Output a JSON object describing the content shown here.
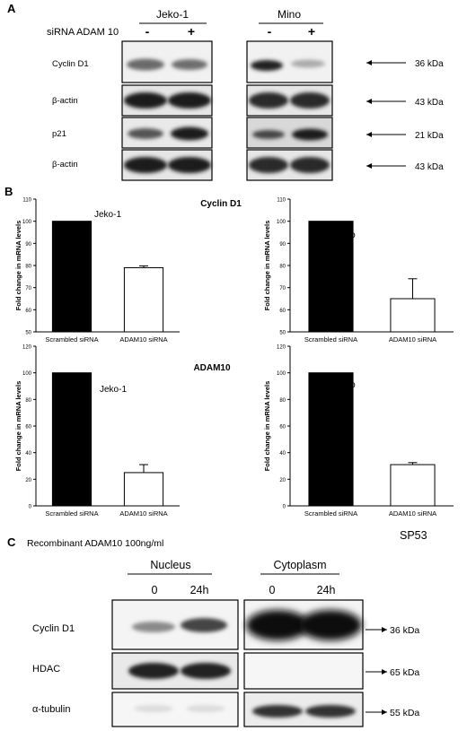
{
  "panel_a": {
    "letter": "A",
    "cell_lines": [
      "Jeko-1",
      "Mino"
    ],
    "treatment_label": "siRNA  ADAM 10",
    "lane_signs": [
      "-",
      "+"
    ],
    "rows": [
      {
        "label": "Cyclin D1",
        "size": "36 kDa"
      },
      {
        "label": "β-actin",
        "size": "43 kDa"
      },
      {
        "label": "p21",
        "size": "21 kDa"
      },
      {
        "label": "β-actin",
        "size": "43 kDa"
      }
    ]
  },
  "panel_b": {
    "letter": "B",
    "row_titles": [
      "Cyclin D1",
      "ADAM10"
    ],
    "ylabel": "Fold change in mRNA  levels"
  },
  "panel_c": {
    "letter": "C",
    "treatment": "Recombinant ADAM10 100ng/ml",
    "fractions": [
      "Nucleus",
      "Cytoplasm"
    ],
    "timepoints": [
      "0",
      "24h"
    ],
    "rows": [
      {
        "label": "Cyclin D1",
        "size": "36 kDa"
      },
      {
        "label": "HDAC",
        "size": "65 kDa"
      },
      {
        "label": "α-tubulin",
        "size": "55 kDa"
      }
    ]
  },
  "figure_label": "SP53",
  "chart_data": [
    {
      "type": "bar",
      "annotation": "Jeko-1",
      "categories": [
        "Scrambled siRNA",
        "ADAM10 siRNA"
      ],
      "values": [
        100,
        79
      ],
      "errors": [
        0,
        0.8
      ],
      "ylim": [
        50,
        110
      ],
      "yticks": [
        50,
        60,
        70,
        80,
        90,
        100,
        110
      ],
      "colors": [
        "#000000",
        "#ffffff"
      ]
    },
    {
      "type": "bar",
      "annotation": "Mino",
      "categories": [
        "Scrambled siRNA",
        "ADAM10 siRNA"
      ],
      "values": [
        100,
        65
      ],
      "errors": [
        0,
        9
      ],
      "ylim": [
        50,
        110
      ],
      "yticks": [
        50,
        60,
        70,
        80,
        90,
        100,
        110
      ],
      "colors": [
        "#000000",
        "#ffffff"
      ]
    },
    {
      "type": "bar",
      "annotation": "Jeko-1",
      "categories": [
        "Scrambled siRNA",
        "ADAM10 siRNA"
      ],
      "values": [
        100,
        25
      ],
      "errors": [
        0,
        6
      ],
      "ylim": [
        0,
        120
      ],
      "yticks": [
        0,
        20,
        40,
        60,
        80,
        100,
        120
      ],
      "colors": [
        "#000000",
        "#ffffff"
      ]
    },
    {
      "type": "bar",
      "annotation": "Mino",
      "categories": [
        "Scrambled siRNA",
        "ADAM10 siRNA"
      ],
      "values": [
        100,
        31
      ],
      "errors": [
        0,
        1.5
      ],
      "ylim": [
        0,
        120
      ],
      "yticks": [
        0,
        20,
        40,
        60,
        80,
        100,
        120
      ],
      "colors": [
        "#000000",
        "#ffffff"
      ]
    }
  ]
}
